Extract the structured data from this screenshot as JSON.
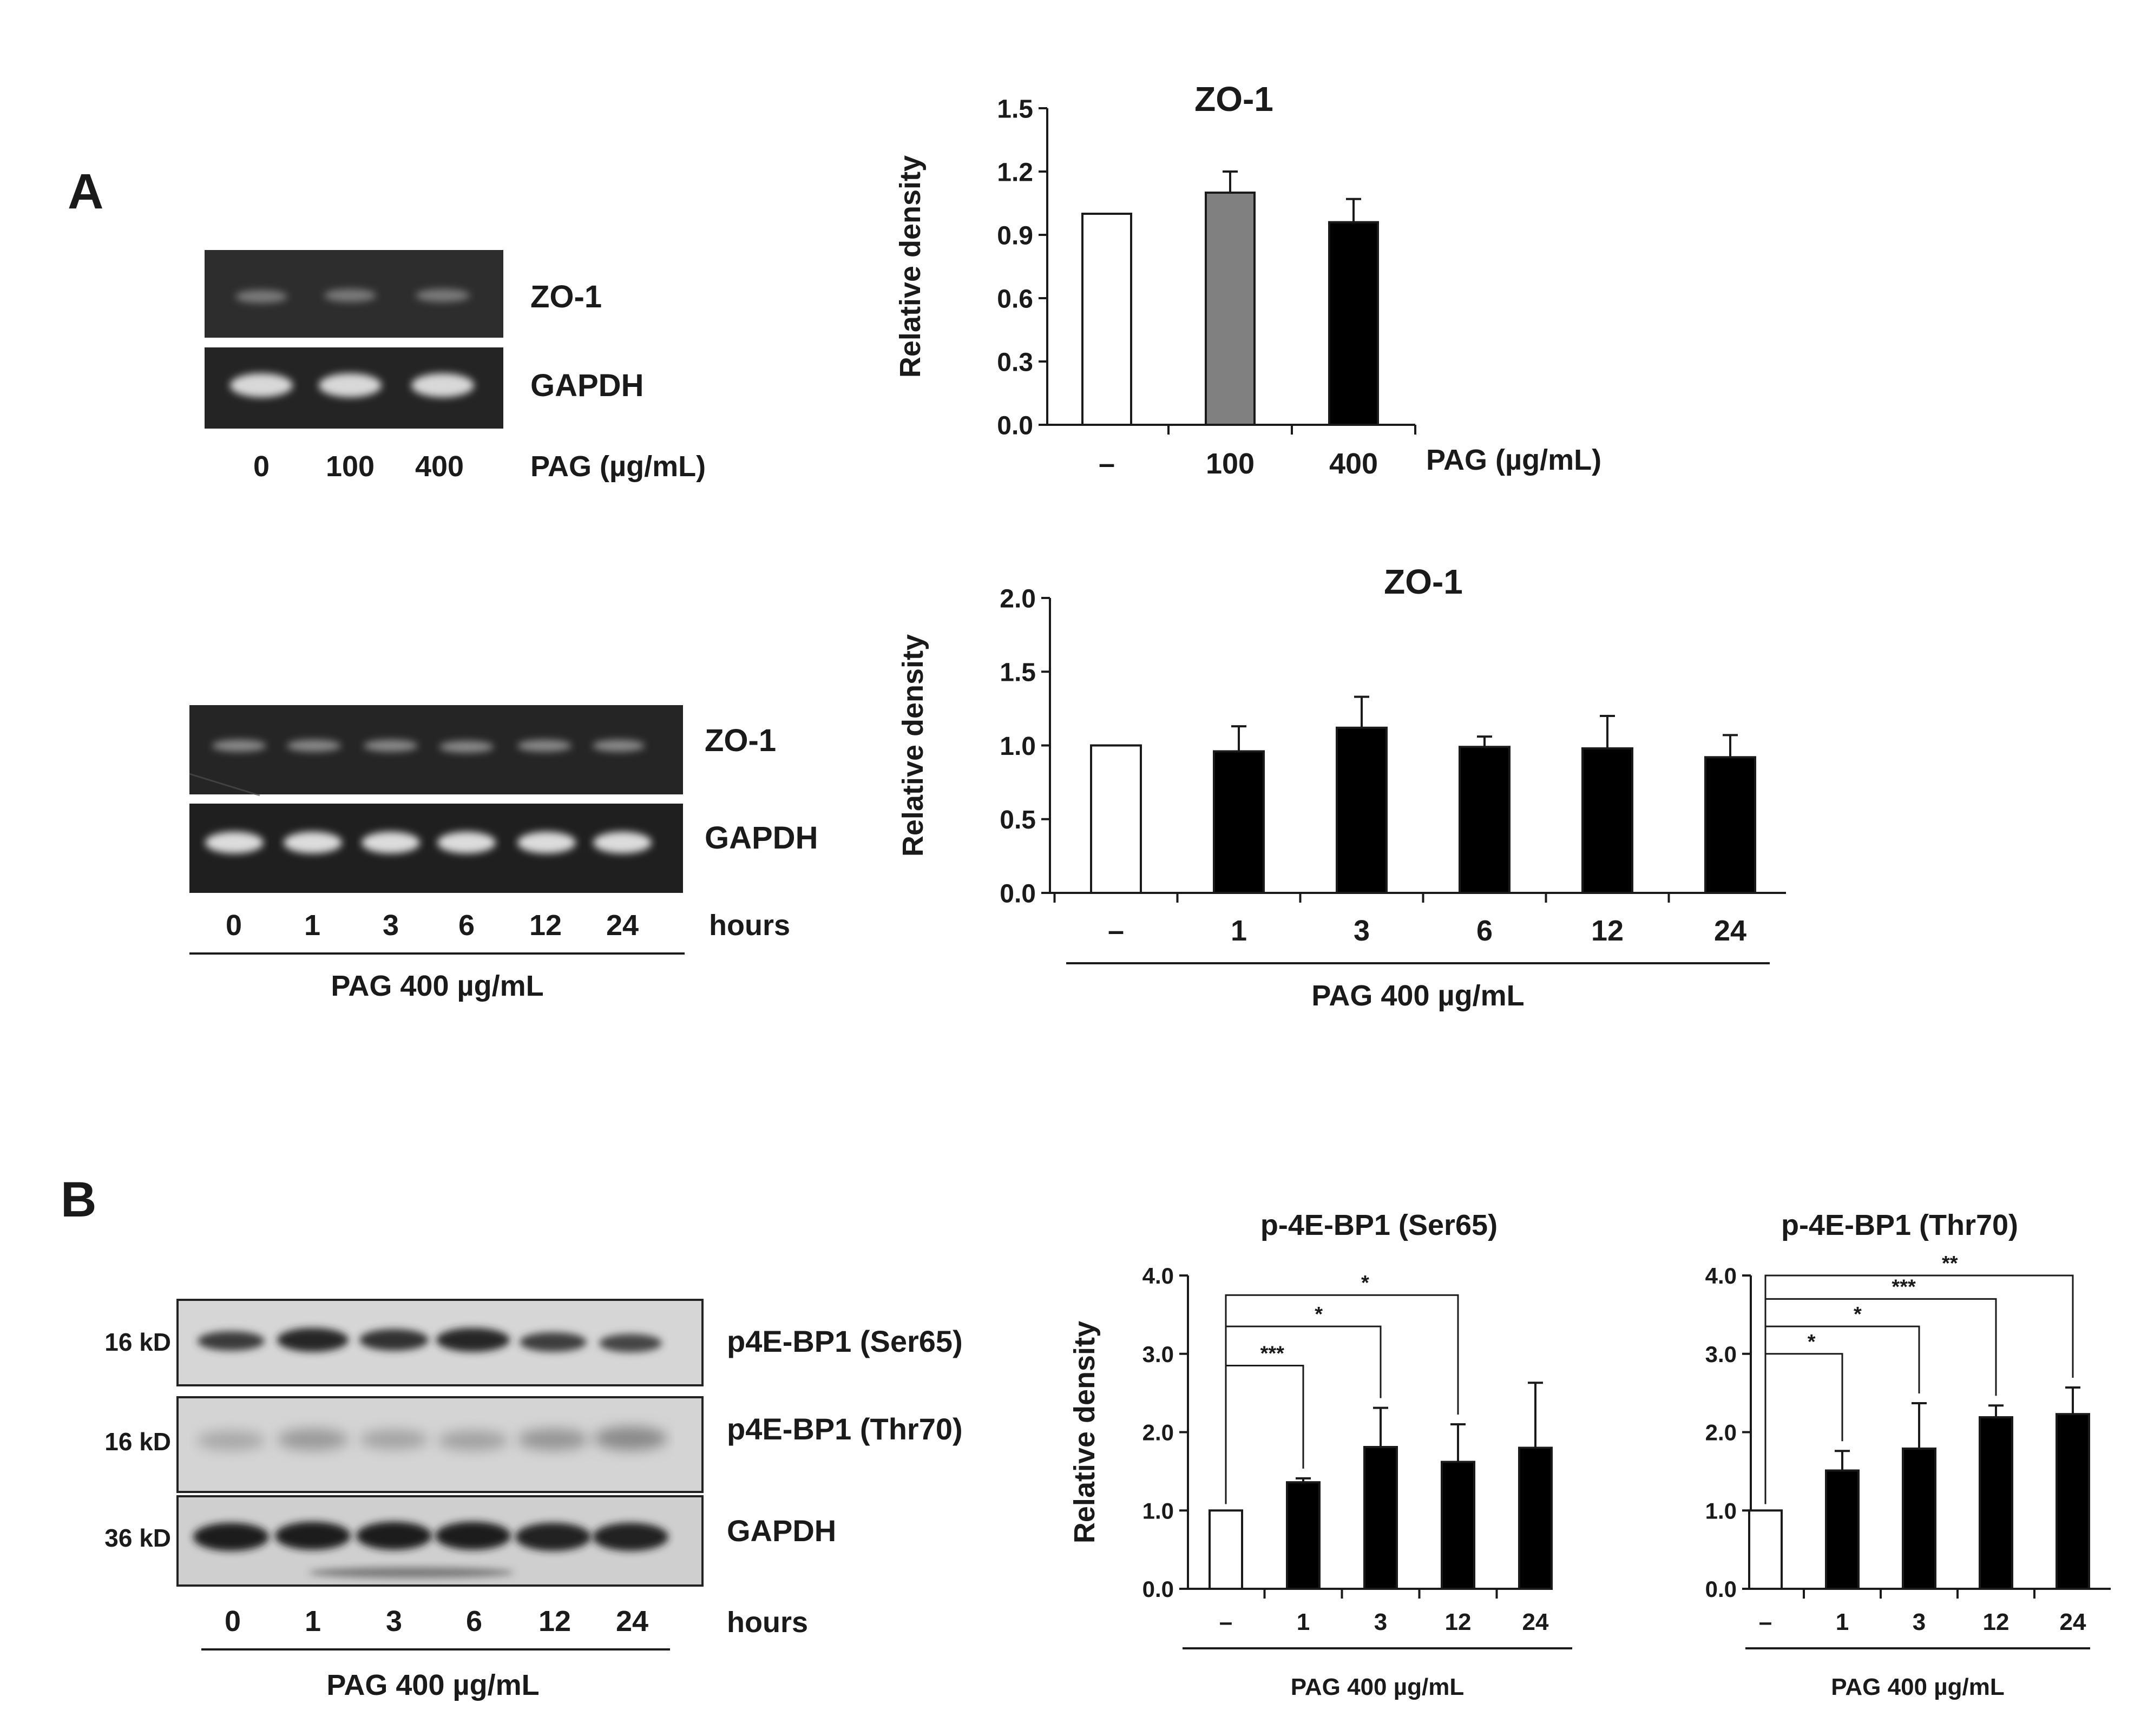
{
  "panels": {
    "A": "A",
    "B": "B"
  },
  "gel_a1": {
    "lanes": [
      "0",
      "100",
      "400"
    ],
    "condition_label": "PAG (µg/mL)",
    "band_labels": [
      "ZO-1",
      "GAPDH"
    ]
  },
  "gel_a2": {
    "lanes": [
      "0",
      "1",
      "3",
      "6",
      "12",
      "24"
    ],
    "unit_label": "hours",
    "group_label": "PAG 400 µg/mL",
    "band_labels": [
      "ZO-1",
      "GAPDH"
    ]
  },
  "blot_b": {
    "lanes": [
      "0",
      "1",
      "3",
      "6",
      "12",
      "24"
    ],
    "unit_label": "hours",
    "group_label": "PAG 400 µg/mL",
    "band_labels": [
      "p4E-BP1 (Ser65)",
      "p4E-BP1 (Thr70)",
      "GAPDH"
    ],
    "mw_labels": [
      "16 kD",
      "16 kD",
      "36 kD"
    ]
  },
  "chart_data": [
    {
      "id": "a-top",
      "type": "bar",
      "title": "ZO-1",
      "ylabel": "Relative density",
      "xlabel": "PAG (µg/mL)",
      "group_label": "",
      "categories": [
        "–",
        "100",
        "400"
      ],
      "values": [
        1.0,
        1.1,
        0.96
      ],
      "errors": [
        0,
        0.1,
        0.11
      ],
      "colors": [
        "#ffffff",
        "#808080",
        "#000000"
      ],
      "ylim": [
        0,
        1.5
      ],
      "yticks": [
        "0.0",
        "0.3",
        "0.6",
        "0.9",
        "1.2",
        "1.5"
      ],
      "significance": []
    },
    {
      "id": "a-bottom",
      "type": "bar",
      "title": "ZO-1",
      "ylabel": "Relative density",
      "xlabel": "",
      "group_label": "PAG 400 µg/mL",
      "categories": [
        "–",
        "1",
        "3",
        "6",
        "12",
        "24"
      ],
      "values": [
        1.0,
        0.96,
        1.12,
        0.99,
        0.98,
        0.92
      ],
      "errors": [
        0,
        0.17,
        0.21,
        0.07,
        0.22,
        0.15
      ],
      "colors": [
        "#ffffff",
        "#000000",
        "#000000",
        "#000000",
        "#000000",
        "#000000"
      ],
      "ylim": [
        0,
        2.0
      ],
      "yticks": [
        "0.0",
        "0.5",
        "1.0",
        "1.5",
        "2.0"
      ],
      "significance": []
    },
    {
      "id": "b-ser65",
      "type": "bar",
      "title": "p-4E-BP1 (Ser65)",
      "ylabel": "Relative density",
      "xlabel": "",
      "group_label": "PAG 400 µg/mL",
      "categories": [
        "–",
        "1",
        "3",
        "12",
        "24"
      ],
      "values": [
        1.0,
        1.36,
        1.81,
        1.62,
        1.8
      ],
      "errors": [
        0,
        0.05,
        0.5,
        0.48,
        0.83
      ],
      "colors": [
        "#ffffff",
        "#000000",
        "#000000",
        "#000000",
        "#000000"
      ],
      "ylim": [
        0,
        4.0
      ],
      "yticks": [
        "0.0",
        "1.0",
        "2.0",
        "3.0",
        "4.0"
      ],
      "significance": [
        {
          "from": 0,
          "to": 1,
          "y": 2.85,
          "label": "***"
        },
        {
          "from": 0,
          "to": 2,
          "y": 3.35,
          "label": "*"
        },
        {
          "from": 0,
          "to": 3,
          "y": 3.75,
          "label": "*"
        }
      ]
    },
    {
      "id": "b-thr70",
      "type": "bar",
      "title": "p-4E-BP1 (Thr70)",
      "ylabel": "",
      "xlabel": "",
      "group_label": "PAG 400 µg/mL",
      "categories": [
        "–",
        "1",
        "3",
        "12",
        "24"
      ],
      "values": [
        1.0,
        1.51,
        1.79,
        2.19,
        2.23
      ],
      "errors": [
        0,
        0.25,
        0.58,
        0.15,
        0.34
      ],
      "colors": [
        "#ffffff",
        "#000000",
        "#000000",
        "#000000",
        "#000000"
      ],
      "ylim": [
        0,
        4.0
      ],
      "yticks": [
        "0.0",
        "1.0",
        "2.0",
        "3.0",
        "4.0"
      ],
      "significance": [
        {
          "from": 0,
          "to": 1,
          "y": 3.0,
          "label": "*"
        },
        {
          "from": 0,
          "to": 2,
          "y": 3.35,
          "label": "*"
        },
        {
          "from": 0,
          "to": 3,
          "y": 3.7,
          "label": "***"
        },
        {
          "from": 0,
          "to": 4,
          "y": 4.0,
          "label": "**"
        }
      ]
    }
  ]
}
